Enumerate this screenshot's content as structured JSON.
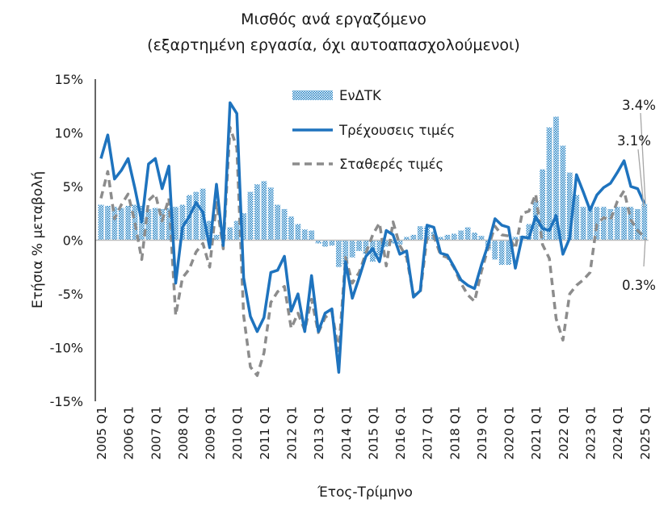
{
  "chart_data": {
    "type": "bar-line",
    "title": "Μισθός ανά εργαζόμενο",
    "subtitle": "(εξαρτημένη εργασία, όχι αυτοαπασχολούμενοι)",
    "xlabel": "Έτος-Τρίμηνο",
    "ylabel": "Ετήσια % μεταβολή",
    "ylim": [
      -15,
      15
    ],
    "yticks": [
      "15%",
      "10%",
      "5%",
      "0%",
      "-5%",
      "-10%",
      "-15%"
    ],
    "ytick_values": [
      15,
      10,
      5,
      0,
      -5,
      -10,
      -15
    ],
    "x_tick_labels": [
      "2005 Q1",
      "2006 Q1",
      "2007 Q1",
      "2008 Q1",
      "2009 Q1",
      "2010 Q1",
      "2011 Q1",
      "2012 Q1",
      "2013 Q1",
      "2014 Q1",
      "2015 Q1",
      "2016 Q1",
      "2017 Q1",
      "2018 Q1",
      "2019 Q1",
      "2020 Q1",
      "2021 Q1",
      "2022 Q1",
      "2023 Q1",
      "2024 Q1",
      "2025 Q1"
    ],
    "legend_position": "top-center",
    "colors": {
      "bars": "#2a86c6",
      "current": "#1e73be",
      "constant": "#8c8c8c"
    },
    "series": [
      {
        "name": "ΕνΔΤΚ",
        "type": "bar",
        "values": [
          3.3,
          3.2,
          3.1,
          3.0,
          3.2,
          3.3,
          3.2,
          2.9,
          3.0,
          2.9,
          3.0,
          3.1,
          3.3,
          4.2,
          4.5,
          4.8,
          1.8,
          0.5,
          0.5,
          1.2,
          1.8,
          2.5,
          4.5,
          5.2,
          5.5,
          4.9,
          3.3,
          2.9,
          2.2,
          1.5,
          1.0,
          0.9,
          -0.3,
          -0.6,
          -0.5,
          -2.5,
          -2.3,
          -1.6,
          -1.0,
          -1.3,
          -2.0,
          -1.4,
          -0.6,
          -0.3,
          -0.4,
          0.3,
          0.5,
          1.3,
          1.3,
          0.8,
          0.3,
          0.5,
          0.6,
          0.9,
          1.2,
          0.7,
          0.4,
          -0.9,
          -1.8,
          -2.3,
          -2.3,
          0.3,
          0.4,
          1.5,
          3.7,
          6.6,
          10.5,
          11.5,
          8.8,
          6.3,
          4.2,
          3.1,
          3.2,
          3.1,
          3.1,
          2.9,
          3.1,
          3.1,
          3.1,
          2.9,
          3.4
        ]
      },
      {
        "name": "Τρέχουσεις τιμές",
        "type": "line",
        "values": [
          7.6,
          9.8,
          5.7,
          6.5,
          7.6,
          4.8,
          1.7,
          7.1,
          7.6,
          4.8,
          6.9,
          -4.0,
          1.2,
          2.2,
          3.5,
          2.6,
          -0.7,
          5.2,
          -0.5,
          12.8,
          11.8,
          -3.5,
          -7.1,
          -8.5,
          -7.2,
          -3.0,
          -2.8,
          -1.5,
          -6.6,
          -5.0,
          -8.5,
          -3.3,
          -8.5,
          -6.8,
          -6.4,
          -12.3,
          -2.0,
          -5.4,
          -3.5,
          -1.5,
          -0.8,
          -2.0,
          0.9,
          0.5,
          -1.3,
          -1.0,
          -5.3,
          -4.7,
          1.4,
          1.2,
          -1.2,
          -1.4,
          -2.5,
          -3.7,
          -4.2,
          -4.5,
          -2.3,
          -0.4,
          2.0,
          1.4,
          1.2,
          -2.6,
          0.3,
          0.2,
          2.2,
          1.1,
          0.9,
          2.3,
          -1.3,
          0.2,
          6.1,
          4.5,
          2.8,
          4.2,
          4.9,
          5.3,
          6.3,
          7.4,
          5.0,
          4.8,
          3.4
        ]
      },
      {
        "name": "Σταθερές τιμές",
        "type": "line",
        "values": [
          3.9,
          6.4,
          2.0,
          3.3,
          4.3,
          1.6,
          -1.8,
          3.7,
          4.3,
          1.8,
          3.9,
          -7.0,
          -3.5,
          -2.7,
          -1.1,
          -0.3,
          -2.5,
          3.5,
          -0.8,
          10.5,
          8.6,
          -7.0,
          -11.8,
          -12.6,
          -10.5,
          -5.8,
          -4.8,
          -4.3,
          -8.2,
          -6.8,
          -8.4,
          -5.5,
          -8.6,
          -7.2,
          -6.7,
          -10.3,
          -1.6,
          -4.0,
          -3.0,
          -1.2,
          0.5,
          1.6,
          -2.4,
          1.7,
          -0.5,
          -1.6,
          -5.1,
          -4.9,
          0.3,
          0.4,
          -1.4,
          -1.6,
          -2.6,
          -4.0,
          -5.1,
          -5.7,
          -2.9,
          -0.7,
          1.3,
          0.5,
          0.4,
          -0.8,
          2.5,
          2.7,
          4.3,
          -0.4,
          -1.7,
          -7.3,
          -9.3,
          -5.0,
          -4.2,
          -3.7,
          -3.0,
          1.5,
          2.1,
          1.9,
          3.6,
          4.6,
          1.9,
          0.9,
          0.3
        ]
      }
    ],
    "annotations": [
      "3.4%",
      "3.1%",
      "0.3%"
    ]
  }
}
